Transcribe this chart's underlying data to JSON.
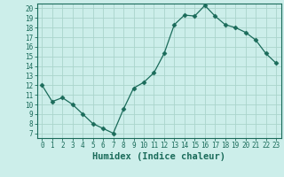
{
  "x": [
    0,
    1,
    2,
    3,
    4,
    5,
    6,
    7,
    8,
    9,
    10,
    11,
    12,
    13,
    14,
    15,
    16,
    17,
    18,
    19,
    20,
    21,
    22,
    23
  ],
  "y": [
    12,
    10.3,
    10.7,
    10,
    9,
    8,
    7.5,
    7,
    9.5,
    11.7,
    12.3,
    13.3,
    15.3,
    18.3,
    19.3,
    19.2,
    20.3,
    19.2,
    18.3,
    18,
    17.5,
    16.7,
    15.3,
    14.3
  ],
  "line_color": "#1a6b5a",
  "marker": "D",
  "marker_size": 2.5,
  "bg_color": "#cceeea",
  "grid_color": "#aad4cc",
  "xlabel": "Humidex (Indice chaleur)",
  "ylim": [
    6.5,
    20.5
  ],
  "xlim": [
    -0.5,
    23.5
  ],
  "yticks": [
    7,
    8,
    9,
    10,
    11,
    12,
    13,
    14,
    15,
    16,
    17,
    18,
    19,
    20
  ],
  "xticks": [
    0,
    1,
    2,
    3,
    4,
    5,
    6,
    7,
    8,
    9,
    10,
    11,
    12,
    13,
    14,
    15,
    16,
    17,
    18,
    19,
    20,
    21,
    22,
    23
  ],
  "tick_label_fontsize": 5.5,
  "xlabel_fontsize": 7.5
}
